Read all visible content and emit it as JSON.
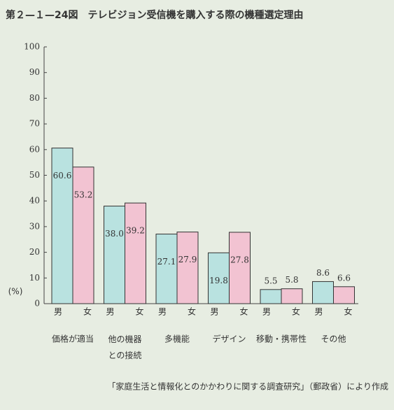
{
  "chart_data": {
    "type": "bar",
    "title": "第２—１—24図　テレビジョン受信機を購入する際の機種選定理由",
    "y_label": "(%)",
    "source": "「家庭生活と情報化とのかかわりに関する調査研究」（郵政省）により作成",
    "categories": [
      "価格が適当",
      "他の機器との接続",
      "多機能",
      "デザイン",
      "移動・携帯性",
      "その他"
    ],
    "series": [
      {
        "name": "男",
        "color": "#b9e2e0",
        "values": [
          60.6,
          38.0,
          27.1,
          19.8,
          5.5,
          8.6
        ],
        "value_labels": [
          "60.6",
          "38.0",
          "27.1",
          "19.8",
          "5.5",
          "8.6"
        ]
      },
      {
        "name": "女",
        "color": "#f2c3d2",
        "values": [
          53.2,
          39.2,
          27.9,
          27.8,
          5.8,
          6.6
        ],
        "value_labels": [
          "53.2",
          "39.2",
          "27.9",
          "27.8",
          "5.8",
          "6.6"
        ]
      }
    ],
    "ylim": [
      0,
      100
    ],
    "yticks": [
      0,
      10,
      20,
      30,
      40,
      50,
      60,
      70,
      80,
      90,
      100
    ],
    "grid": false
  }
}
